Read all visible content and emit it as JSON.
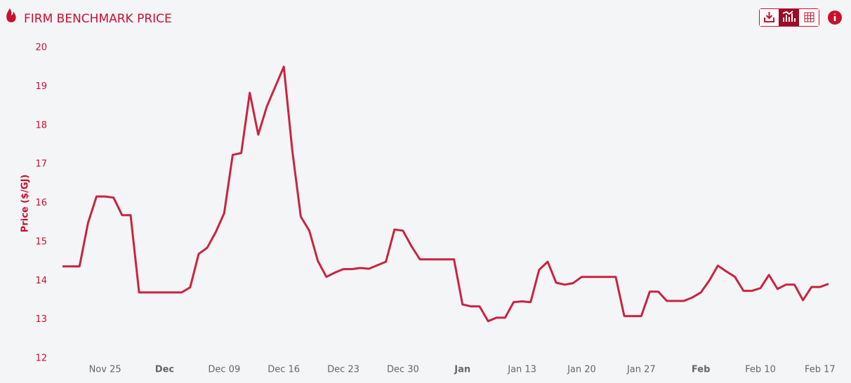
{
  "chart_data": {
    "type": "line",
    "title": "FIRM BENCHMARK PRICE",
    "y_label": "Price ($/GJ)",
    "categories": [
      null,
      null,
      null,
      null,
      null,
      "Nov 25",
      null,
      null,
      null,
      null,
      null,
      null,
      "Dec",
      null,
      null,
      null,
      null,
      null,
      null,
      "Dec 09",
      null,
      null,
      null,
      null,
      null,
      null,
      "Dec 16",
      null,
      null,
      null,
      null,
      null,
      null,
      "Dec 23",
      null,
      null,
      null,
      null,
      null,
      null,
      "Dec 30",
      null,
      null,
      null,
      null,
      null,
      null,
      "Jan",
      null,
      null,
      null,
      null,
      null,
      null,
      "Jan 13",
      null,
      null,
      null,
      null,
      null,
      null,
      "Jan 20",
      null,
      null,
      null,
      null,
      null,
      null,
      "Jan 27",
      null,
      null,
      null,
      null,
      null,
      null,
      "Feb",
      null,
      null,
      null,
      null,
      null,
      null,
      "Feb 10",
      null,
      null,
      null,
      null,
      null,
      null,
      "Feb 17",
      null
    ],
    "series": [
      {
        "name": "Firm Benchmark Price",
        "color": "#c8243f",
        "values": [
          14.37,
          14.37,
          14.37,
          15.49,
          16.17,
          16.17,
          16.14,
          15.69,
          15.69,
          13.7,
          13.7,
          13.7,
          13.7,
          13.7,
          13.7,
          13.83,
          14.69,
          14.85,
          15.25,
          15.74,
          17.24,
          17.29,
          18.84,
          17.76,
          18.48,
          19.0,
          19.51,
          17.35,
          15.65,
          15.29,
          14.51,
          14.1,
          14.21,
          14.3,
          14.3,
          14.33,
          14.31,
          14.4,
          14.49,
          15.32,
          15.29,
          14.89,
          14.55,
          14.55,
          14.55,
          14.55,
          14.55,
          13.39,
          13.34,
          13.34,
          12.96,
          13.05,
          13.05,
          13.45,
          13.47,
          13.45,
          14.28,
          14.49,
          13.95,
          13.9,
          13.94,
          14.1,
          14.1,
          14.1,
          14.1,
          14.1,
          13.09,
          13.09,
          13.09,
          13.72,
          13.72,
          13.48,
          13.48,
          13.48,
          13.57,
          13.7,
          14.01,
          14.39,
          14.24,
          14.1,
          13.74,
          13.74,
          13.81,
          14.15,
          13.79,
          13.9,
          13.9,
          13.5,
          13.84,
          13.84,
          13.92
        ]
      }
    ],
    "ylim": [
      12,
      20
    ],
    "yticks": [
      12,
      13,
      14,
      15,
      16,
      17,
      18,
      19,
      20
    ],
    "grid": false
  }
}
